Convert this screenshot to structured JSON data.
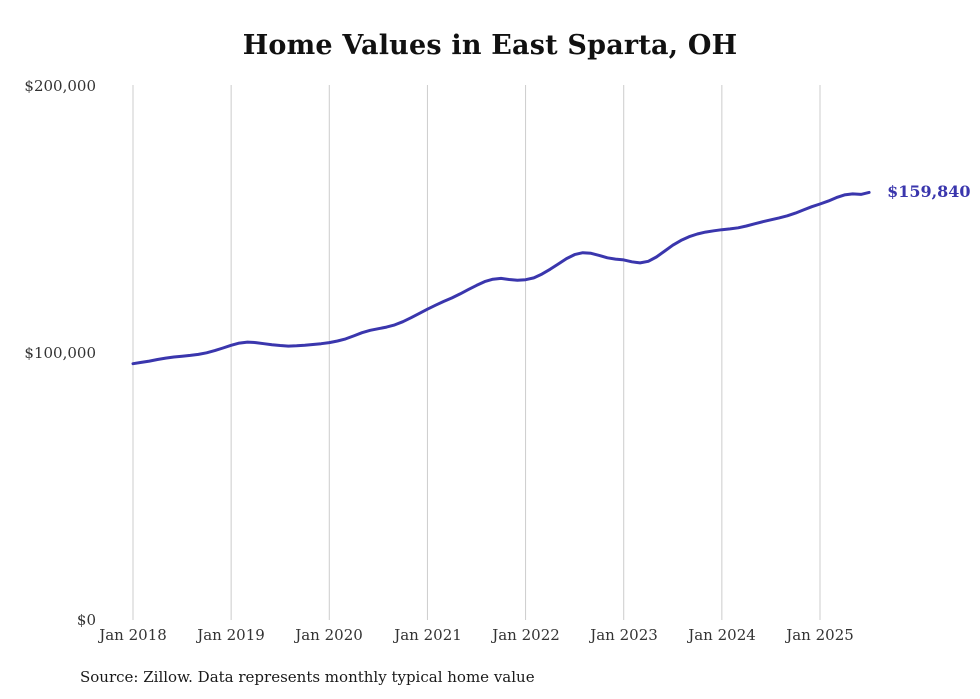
{
  "chart_data": {
    "type": "line",
    "title": "Home Values in East Sparta, OH",
    "source": "Source: Zillow. Data represents monthly typical home value",
    "series_name": "Monthly typical home value",
    "x_start": "Jan 2018",
    "x_end": "Jul 2025",
    "x_tick_labels": [
      "Jan 2018",
      "Jan 2019",
      "Jan 2020",
      "Jan 2021",
      "Jan 2022",
      "Jan 2023",
      "Jan 2024",
      "Jan 2025"
    ],
    "y_tick_labels": [
      "$0",
      "$100,000",
      "$200,000"
    ],
    "ylim": [
      0,
      200000
    ],
    "grid": "vertical-only",
    "legend": "none",
    "end_label": "$159,840",
    "end_value": 159840,
    "line_color": "#3a36ad",
    "grid_color": "#cccccc",
    "values": [
      95800,
      96300,
      96800,
      97400,
      97900,
      98300,
      98600,
      98900,
      99300,
      99900,
      100700,
      101700,
      102700,
      103500,
      103900,
      103700,
      103300,
      102900,
      102600,
      102400,
      102500,
      102700,
      103000,
      103300,
      103700,
      104300,
      105100,
      106200,
      107400,
      108300,
      108900,
      109500,
      110300,
      111500,
      113000,
      114600,
      116200,
      117700,
      119100,
      120400,
      121900,
      123500,
      125100,
      126500,
      127400,
      127700,
      127300,
      127000,
      127200,
      127900,
      129300,
      131100,
      133100,
      135100,
      136600,
      137300,
      137100,
      136300,
      135400,
      134900,
      134600,
      133900,
      133500,
      134100,
      135700,
      137900,
      140100,
      141900,
      143300,
      144300,
      145000,
      145500,
      145900,
      146200,
      146600,
      147300,
      148100,
      148900,
      149600,
      150300,
      151100,
      152100,
      153300,
      154500,
      155500,
      156600,
      157900,
      158900,
      159300,
      159100,
      159840
    ]
  }
}
